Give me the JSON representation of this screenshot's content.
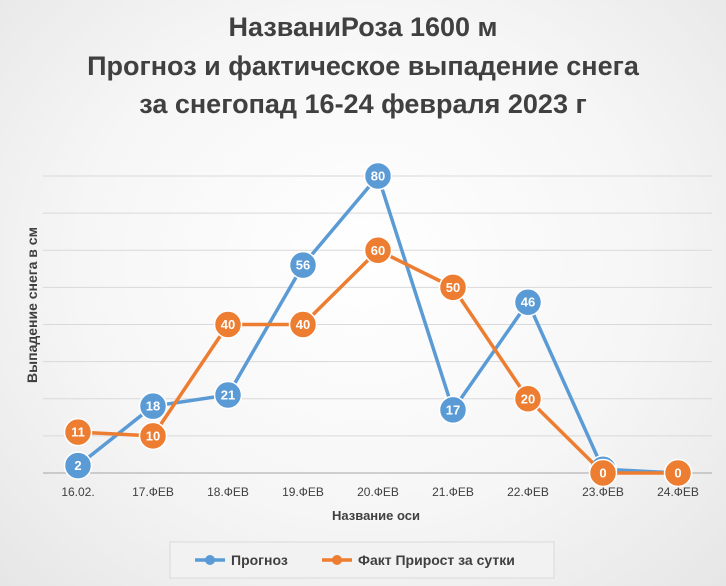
{
  "chart_data": {
    "type": "line",
    "title_lines": [
      "НазваниРоза 1600 м",
      "Прогноз и фактическое  выпадение снега",
      "за снегопад 16-24 февраля 2023 г"
    ],
    "xlabel": "Название оси",
    "ylabel": "Выпадение снега в см",
    "categories": [
      "16.02.",
      "17.ФЕВ",
      "18.ФЕВ",
      "19.ФЕВ",
      "20.ФЕВ",
      "21.ФЕВ",
      "22.ФЕВ",
      "23.ФЕВ",
      "24.ФЕВ"
    ],
    "ylim": [
      0,
      80
    ],
    "ytick_step": 10,
    "grid": true,
    "legend_position": "bottom",
    "series": [
      {
        "name": "Прогноз",
        "color": "#5b9bd5",
        "values": [
          2,
          18,
          21,
          56,
          80,
          17,
          46,
          1,
          0
        ],
        "labels": [
          "2",
          "18",
          "21",
          "56",
          "80",
          "17",
          "46",
          "1",
          ""
        ]
      },
      {
        "name": "Факт Прирост за сутки",
        "color": "#ed7d31",
        "values": [
          11,
          10,
          40,
          40,
          60,
          50,
          20,
          0,
          0
        ],
        "labels": [
          "11",
          "10",
          "40",
          "40",
          "60",
          "50",
          "20",
          "0",
          "0"
        ]
      }
    ]
  }
}
